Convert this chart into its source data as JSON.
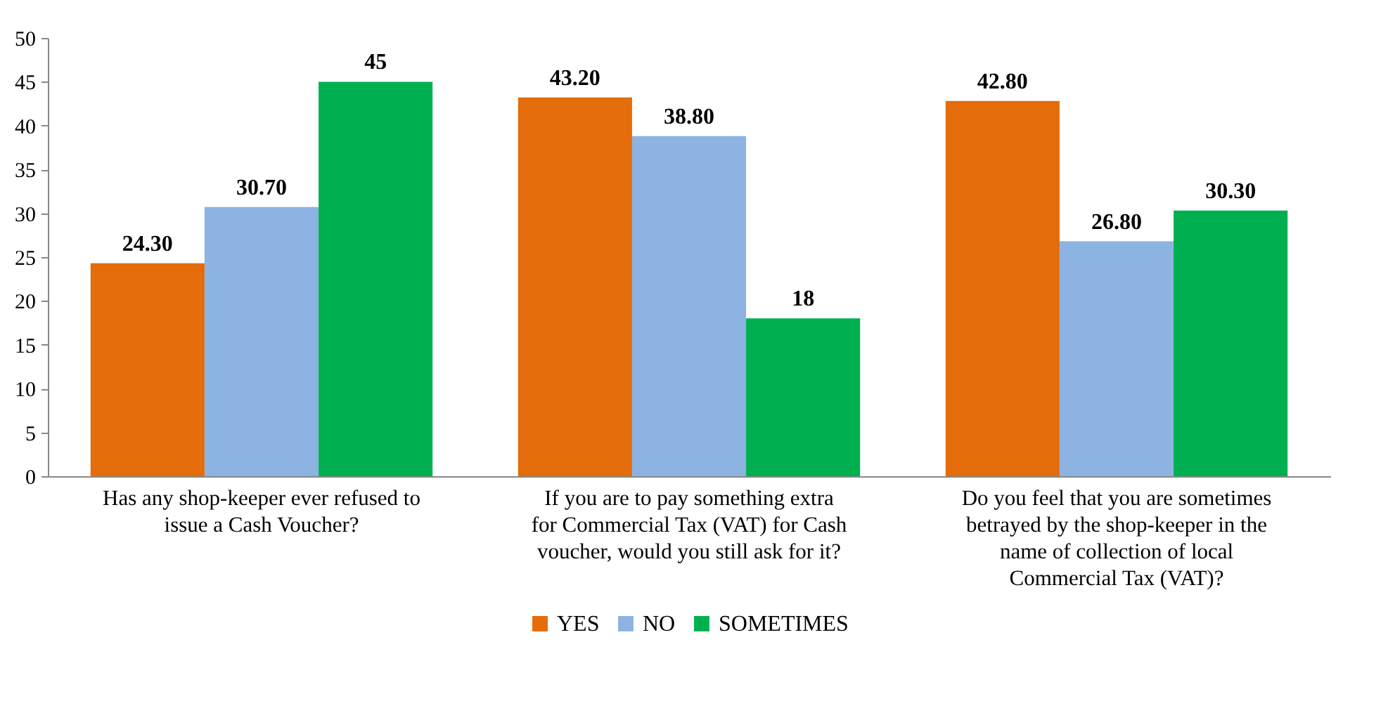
{
  "chart_data": {
    "type": "bar",
    "categories": [
      "Has any shop-keeper ever refused to issue a Cash Voucher?",
      "If you are to pay something extra for Commercial Tax (VAT) for Cash voucher, would you still ask for it?",
      "Do you feel that you are sometimes betrayed by the shop-keeper in the name of collection of local Commercial Tax (VAT)?"
    ],
    "series": [
      {
        "name": "YES",
        "color": "#e46c0a",
        "values": [
          24.3,
          43.2,
          42.8
        ],
        "value_labels": [
          "24.30",
          "43.20",
          "42.80"
        ]
      },
      {
        "name": "NO",
        "color": "#8db3e2",
        "values": [
          30.7,
          38.8,
          26.8
        ],
        "value_labels": [
          "30.70",
          "38.80",
          "26.80"
        ]
      },
      {
        "name": "SOMETIMES",
        "color": "#00b050",
        "values": [
          45,
          18,
          30.3
        ],
        "value_labels": [
          "45",
          "18",
          "30.30"
        ]
      }
    ],
    "ylim": [
      0,
      50
    ],
    "yticks": [
      0,
      5,
      10,
      15,
      20,
      25,
      30,
      35,
      40,
      45,
      50
    ],
    "grid": false,
    "legend": "bottom"
  }
}
